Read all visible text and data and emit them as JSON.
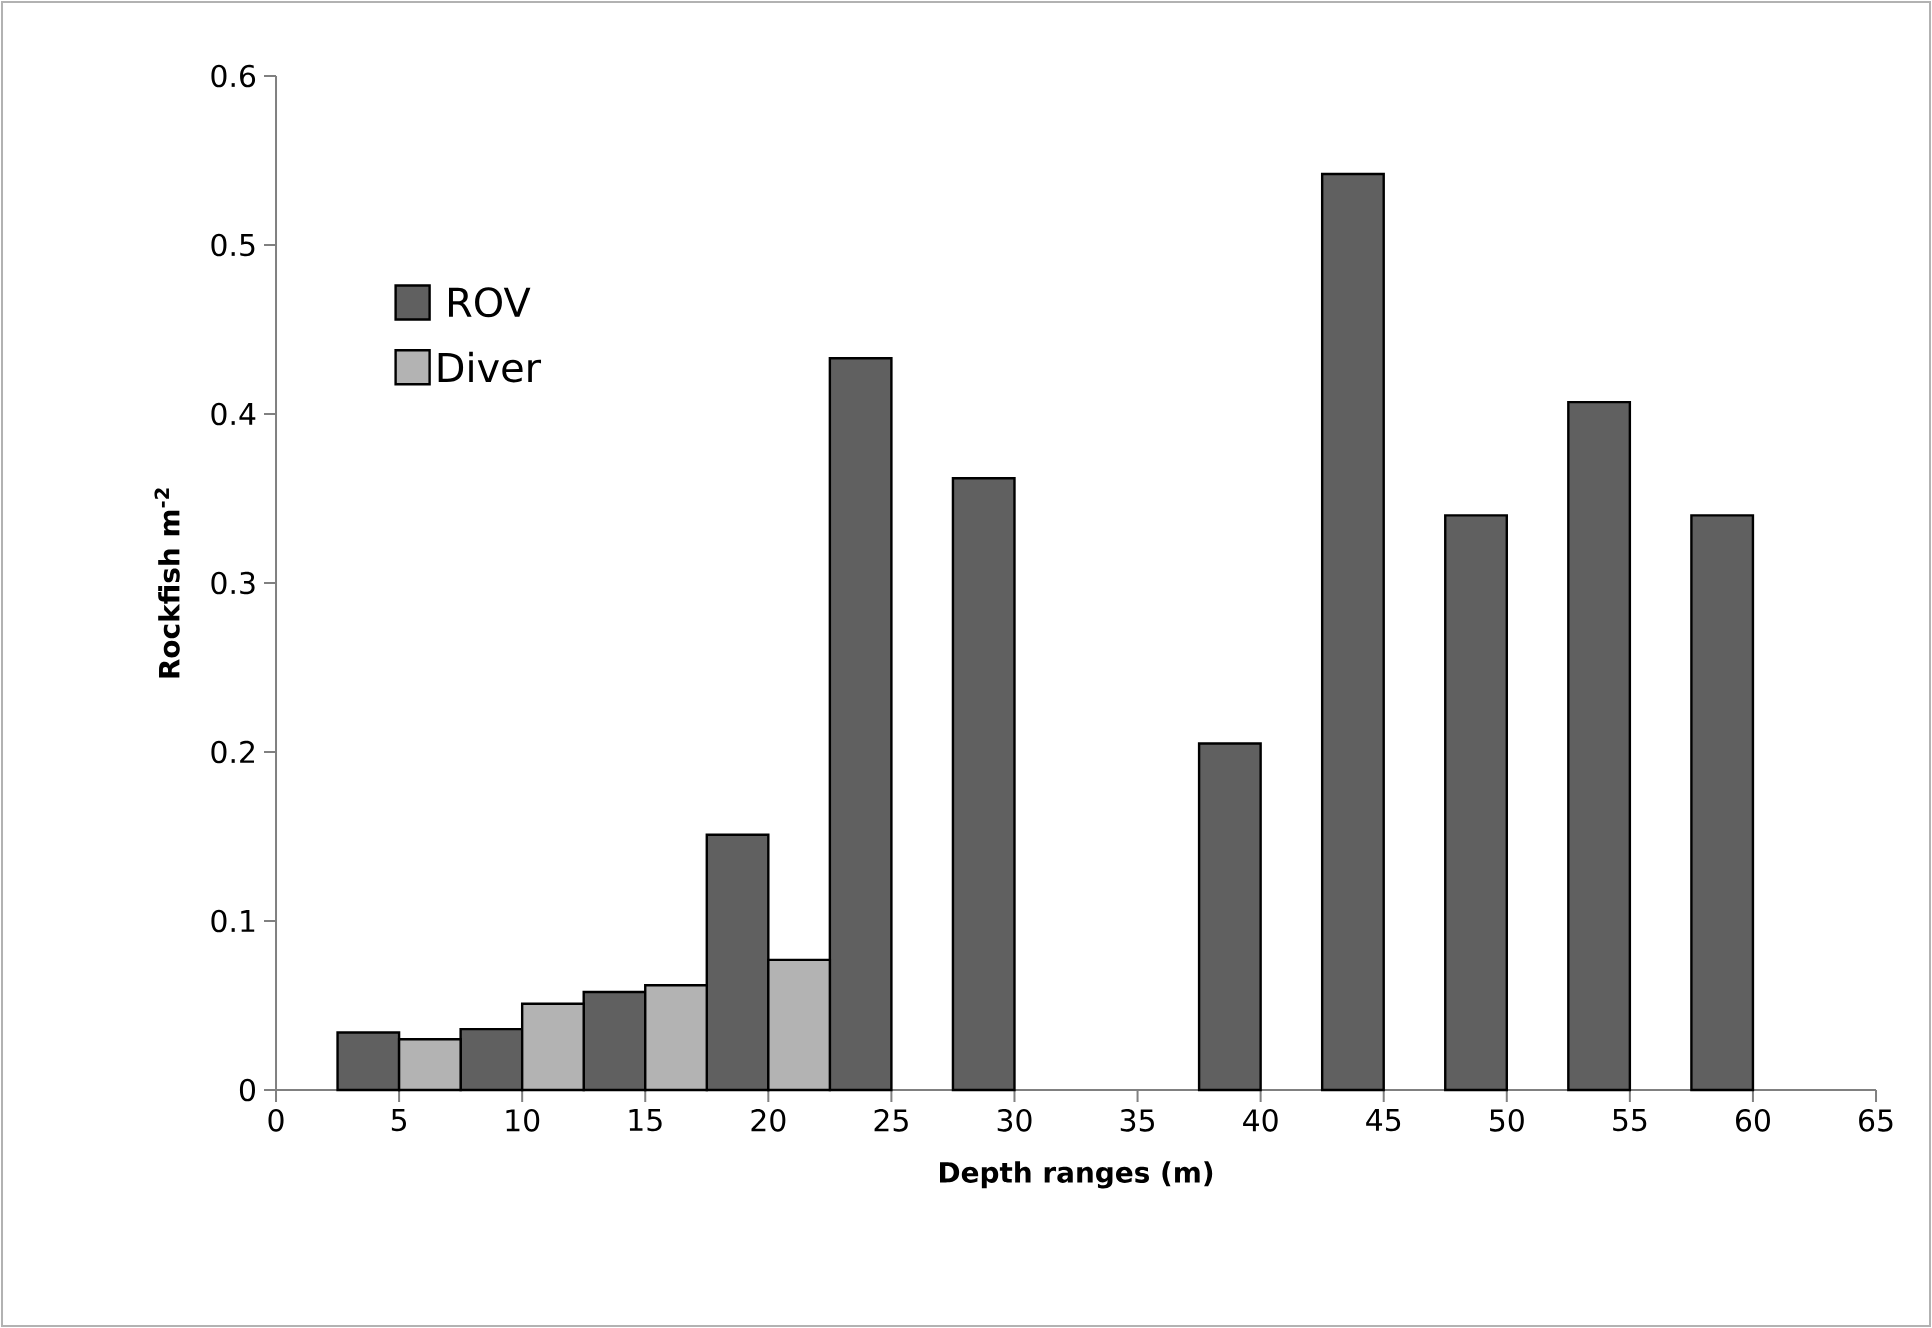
{
  "chart_data": {
    "type": "bar",
    "xlabel": "Depth ranges (m)",
    "ylabel": "Rockfish m$^{-2}$",
    "series": [
      {
        "name": "ROV",
        "color": "#606060",
        "x": [
          3.75,
          8.75,
          13.75,
          18.75,
          23.75,
          28.75,
          38.75,
          43.75,
          48.75,
          53.75,
          58.75
        ],
        "values": [
          0.034,
          0.036,
          0.058,
          0.151,
          0.433,
          0.362,
          0.205,
          0.542,
          0.34,
          0.407,
          0.34
        ]
      },
      {
        "name": "Diver",
        "color": "#b3b3b3",
        "x": [
          6.25,
          11.25,
          16.25,
          21.25
        ],
        "values": [
          0.03,
          0.051,
          0.062,
          0.077
        ]
      }
    ],
    "xlim": [
      0,
      65
    ],
    "xticks": [
      0,
      5,
      10,
      15,
      20,
      25,
      30,
      35,
      40,
      45,
      50,
      55,
      60,
      65
    ],
    "ylim": [
      0,
      0.6
    ],
    "yticks": [
      0,
      0.1,
      0.2,
      0.3,
      0.4,
      0.5,
      0.6
    ],
    "grid": false,
    "legend": "top left"
  }
}
